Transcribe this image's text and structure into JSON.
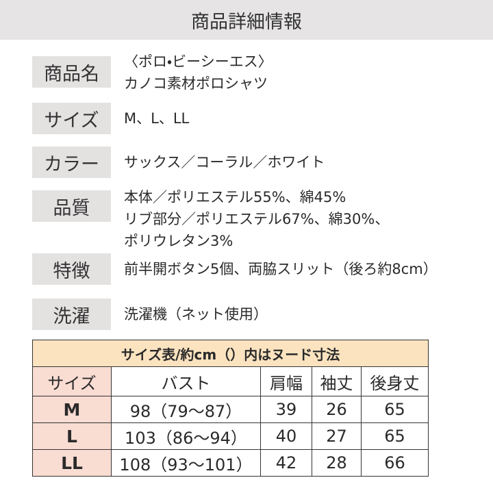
{
  "header": {
    "title": "商品詳細情報"
  },
  "details": [
    {
      "label": "商品名",
      "lines": [
        "〈ポロ・ビーシーエス〉",
        "カノコ素材ポロシャツ"
      ]
    },
    {
      "label": "サイズ",
      "lines": [
        "M、L、LL"
      ]
    },
    {
      "label": "カラー",
      "lines": [
        "サックス／コーラル／ホワイト"
      ]
    },
    {
      "label": "品質",
      "lines": [
        "本体／ポリエステル55%、綿45%",
        "リブ部分／ポリエステル67%、綿30%、",
        "ポリウレタン3%"
      ]
    },
    {
      "label": "特徴",
      "lines": [
        "前半開ボタン5個、両脇スリット（後ろ約8cm）"
      ]
    },
    {
      "label": "洗濯",
      "lines": [
        "洗濯機（ネット使用）"
      ]
    }
  ],
  "table": {
    "caption": "サイズ表/約cm（）内はヌード寸法",
    "header": [
      "サイズ",
      "バスト",
      "肩幅",
      "袖丈",
      "後身丈"
    ],
    "rows": [
      [
        "M",
        "98（79〜87）",
        "39",
        "26",
        "65"
      ],
      [
        "L",
        "103（86〜94）",
        "40",
        "27",
        "65"
      ],
      [
        "LL",
        "108（93〜101）",
        "42",
        "28",
        "66"
      ]
    ]
  }
}
